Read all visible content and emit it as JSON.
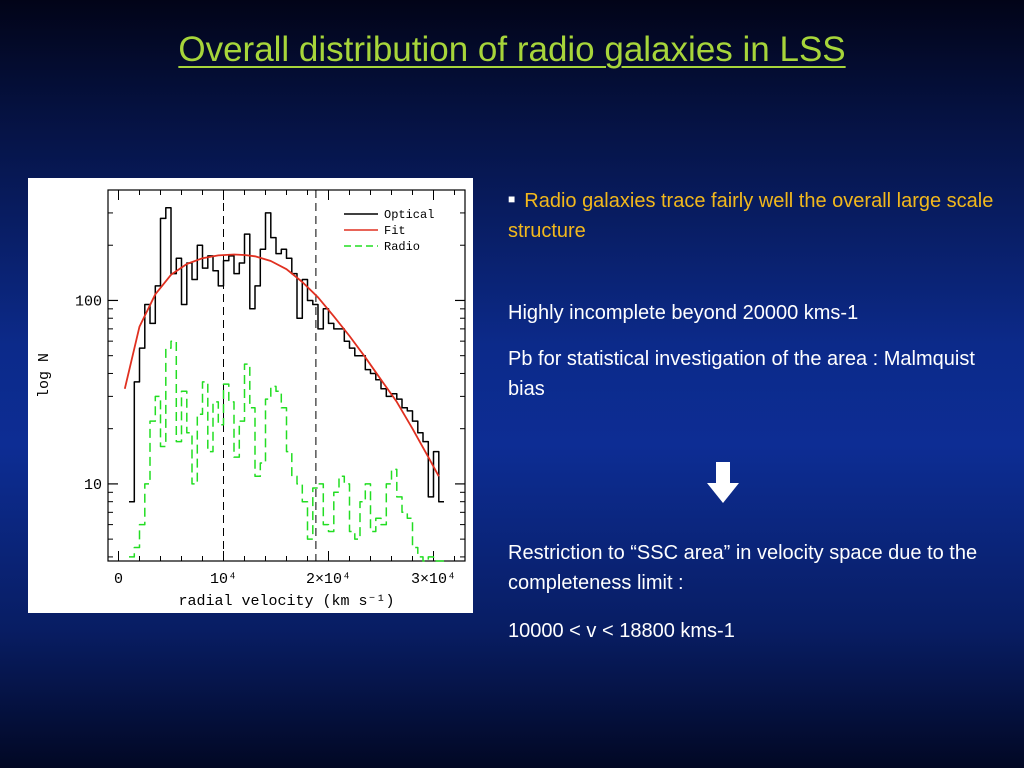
{
  "slide": {
    "title": "Overall distribution of radio galaxies in LSS",
    "bullet": "Radio galaxies trace fairly well the overall large scale structure",
    "para1": "Highly incomplete beyond 20000 kms-1",
    "para2": "Pb for statistical investigation of the area : Malmquist bias",
    "arrow_icon": "down-arrow",
    "para3": "Restriction to “SSC area” in velocity space due to the completeness limit :",
    "para4": "10000 < v < 18800 kms-1"
  },
  "chart_data": {
    "type": "line",
    "xlabel": "radial velocity (km s⁻¹)",
    "ylabel": "log N",
    "x_ticks": [
      {
        "value": 0,
        "label": "0"
      },
      {
        "value": 10000,
        "label": "10⁴"
      },
      {
        "value": 20000,
        "label": "2×10⁴"
      },
      {
        "value": 30000,
        "label": "3×10⁴"
      }
    ],
    "y_ticks": [
      {
        "value": 10,
        "label": "10"
      },
      {
        "value": 100,
        "label": "100"
      }
    ],
    "xlim": [
      -1000,
      33000
    ],
    "ylim": [
      3.8,
      400
    ],
    "y_scale": "log",
    "legend_position": "top-right",
    "vertical_markers": [
      10000,
      18800
    ],
    "series": [
      {
        "name": "Optical",
        "style": "step",
        "color": "#000000",
        "dash": "solid",
        "x": [
          1000,
          1500,
          2000,
          2500,
          3000,
          3500,
          4000,
          4500,
          5000,
          5500,
          6000,
          6500,
          7000,
          7500,
          8000,
          8500,
          9000,
          9500,
          10000,
          10500,
          11000,
          11500,
          12000,
          12500,
          13000,
          13500,
          14000,
          14500,
          15000,
          15500,
          16000,
          16500,
          17000,
          17500,
          18000,
          18500,
          19000,
          19500,
          20000,
          20500,
          21000,
          21500,
          22000,
          22500,
          23000,
          23500,
          24000,
          24500,
          25000,
          25500,
          26000,
          26500,
          27000,
          27500,
          28000,
          28500,
          29000,
          29500,
          30000,
          30500
        ],
        "y": [
          8,
          36,
          55,
          95,
          75,
          120,
          280,
          320,
          140,
          170,
          95,
          160,
          130,
          200,
          150,
          175,
          145,
          120,
          165,
          175,
          140,
          160,
          230,
          90,
          120,
          190,
          300,
          220,
          180,
          190,
          170,
          140,
          80,
          130,
          100,
          95,
          70,
          90,
          75,
          70,
          70,
          60,
          55,
          50,
          50,
          42,
          40,
          37,
          33,
          30,
          31,
          29,
          26,
          25,
          22,
          19,
          17,
          8.5,
          15,
          8
        ]
      },
      {
        "name": "Fit",
        "style": "curve",
        "color": "#e03020",
        "dash": "solid",
        "x": [
          600,
          2000,
          3500,
          5000,
          6500,
          8000,
          9500,
          11000,
          12000,
          13000,
          14500,
          16000,
          17500,
          19000,
          20500,
          22000,
          23500,
          25000,
          26500,
          28000,
          29500,
          30500
        ],
        "y": [
          33,
          72,
          108,
          138,
          158,
          170,
          176,
          178,
          177,
          174,
          164,
          148,
          126,
          104,
          82,
          64,
          49,
          37,
          28,
          20,
          14,
          11
        ]
      },
      {
        "name": "Radio",
        "style": "step",
        "color": "#22dd22",
        "dash": "dashed",
        "x": [
          1000,
          1500,
          2000,
          2500,
          3000,
          3500,
          4000,
          4500,
          5000,
          5500,
          6000,
          6500,
          7000,
          7500,
          8000,
          8500,
          9000,
          9500,
          10000,
          10500,
          11000,
          11500,
          12000,
          12500,
          13000,
          13500,
          14000,
          14500,
          15000,
          15500,
          16000,
          16500,
          17000,
          17500,
          18000,
          18500,
          19000,
          19500,
          20000,
          20500,
          21000,
          21500,
          22000,
          22500,
          23000,
          23500,
          24000,
          24500,
          25000,
          25500,
          26000,
          26500,
          27000,
          27500,
          28000,
          28500,
          29000,
          29500,
          30000,
          30500
        ],
        "y": [
          4,
          4.5,
          6,
          10,
          22,
          30,
          16,
          55,
          60,
          17,
          32,
          19,
          10,
          24,
          36,
          15,
          28,
          21,
          35,
          28,
          14,
          22,
          45,
          26,
          11,
          13,
          29,
          34,
          32,
          26,
          15,
          11,
          10,
          8,
          5,
          9.5,
          10,
          6,
          5.5,
          9,
          11,
          10,
          5.5,
          5,
          8,
          10,
          5.5,
          6.5,
          6,
          10,
          12,
          8.5,
          7,
          6.5,
          4.5,
          4,
          3.8,
          4,
          3.8,
          3.8
        ]
      }
    ]
  }
}
